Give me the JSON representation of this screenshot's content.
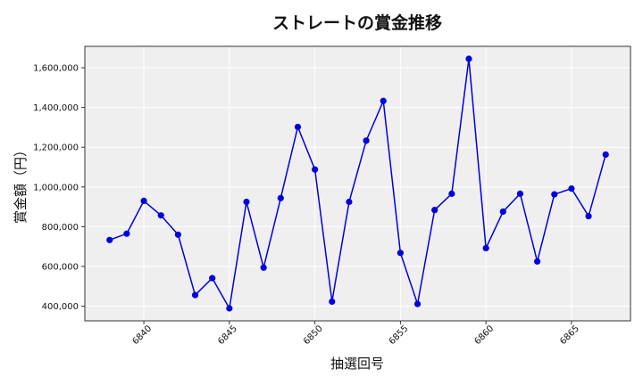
{
  "chart_data": {
    "type": "line",
    "title": "ストレートの賞金推移",
    "xlabel": "抽選回号",
    "ylabel": "賞金額（円）",
    "x": [
      6838,
      6839,
      6840,
      6841,
      6842,
      6843,
      6844,
      6845,
      6846,
      6847,
      6848,
      6849,
      6850,
      6851,
      6852,
      6853,
      6854,
      6855,
      6856,
      6857,
      6858,
      6859,
      6860,
      6861,
      6862,
      6863,
      6864,
      6865,
      6866,
      6867
    ],
    "series": [
      {
        "values": [
          733000,
          765000,
          930000,
          857000,
          760000,
          456000,
          541000,
          389000,
          925000,
          594000,
          944000,
          1302000,
          1088000,
          423000,
          925000,
          1233000,
          1433000,
          668000,
          411000,
          884000,
          966000,
          1645000,
          692000,
          876000,
          966000,
          625000,
          963000,
          992000,
          853000,
          1163000
        ],
        "color": "#0000dd"
      }
    ],
    "xticks": [
      6840,
      6845,
      6850,
      6855,
      6860,
      6865
    ],
    "yticks": [
      400000,
      600000,
      800000,
      1000000,
      1200000,
      1400000,
      1600000
    ],
    "ytick_labels": [
      "400,000",
      "600,000",
      "800,000",
      "1,000,000",
      "1,200,000",
      "1,400,000",
      "1,600,000"
    ],
    "xlim": [
      6836.55,
      6868.45
    ],
    "ylim": [
      326200,
      1707800
    ],
    "grid": true,
    "background": "#efefef"
  }
}
